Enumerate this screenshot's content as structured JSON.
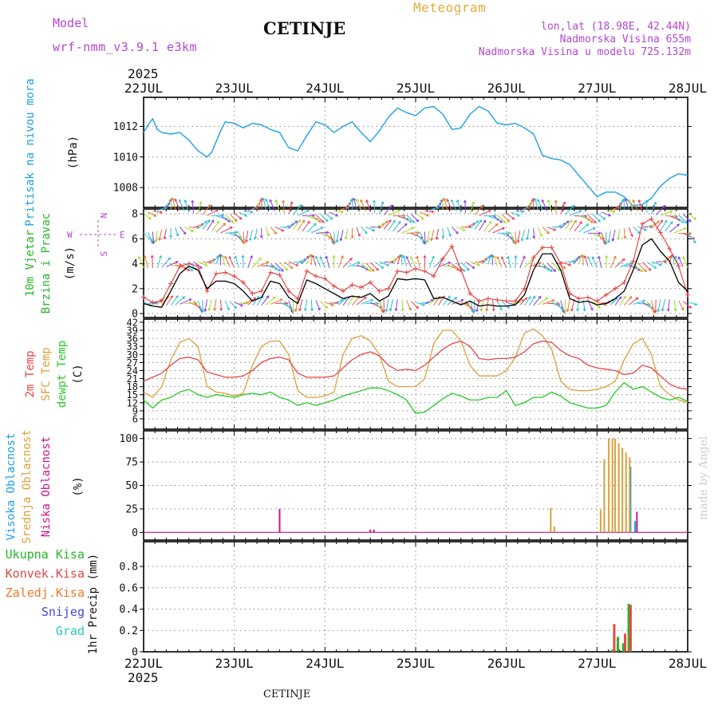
{
  "header": {
    "model_label": "Model",
    "model_name": "wrf-nmm_v3.9.1 e3km",
    "title": "CETINJE",
    "meteogram": "Meteogram",
    "lonlat": "lon,lat (18.98E, 42.44N)",
    "elevation": "Nadmorska Visina 655m",
    "model_elevation": "Nadmorska Visina u modelu 725.132m",
    "footer_title": "CETINJE",
    "watermark": "made by Angel"
  },
  "colors": {
    "pressure": "#1ea0e6",
    "temp2m": "#e64646",
    "sfc": "#dca03c",
    "dewpt": "#28c828",
    "wind_speed": "#000000",
    "gust": "#e64646",
    "high_cloud": "#1ea0e6",
    "mid_cloud": "#dca03c",
    "low_cloud": "#c8148c",
    "total_precip": "#28b428",
    "conv_precip": "#e64646",
    "frozen": "#f07828",
    "snow": "#4646dc",
    "graupel": "#28c8b4",
    "purple_text": "#b446d2",
    "orange_text": "#e6aa3c"
  },
  "chart_data": [
    {
      "type": "line",
      "panel": "pressure",
      "year": "2025",
      "x_ticks": [
        "22JUL",
        "23JUL",
        "24JUL",
        "25JUL",
        "26JUL",
        "27JUL",
        "28JUL"
      ],
      "xlim_days": [
        0,
        6
      ],
      "ylabel_side": "Pritisak na nivou mora",
      "ylabel_unit": "(hPa)",
      "y_ticks": [
        "1008",
        "1010",
        "1012"
      ],
      "ylim": [
        1006.7,
        1013.9
      ],
      "series": [
        {
          "name": "Pritisak na nivou mora",
          "x": [
            0,
            0.05,
            0.1,
            0.15,
            0.2,
            0.3,
            0.4,
            0.5,
            0.6,
            0.7,
            0.75,
            0.85,
            0.9,
            1.0,
            1.1,
            1.2,
            1.3,
            1.4,
            1.5,
            1.6,
            1.7,
            1.8,
            1.9,
            2.0,
            2.1,
            2.2,
            2.3,
            2.4,
            2.5,
            2.6,
            2.7,
            2.8,
            2.9,
            3.0,
            3.1,
            3.2,
            3.3,
            3.4,
            3.5,
            3.6,
            3.7,
            3.8,
            3.9,
            4.0,
            4.1,
            4.2,
            4.3,
            4.4,
            4.5,
            4.6,
            4.7,
            4.8,
            4.9,
            5.0,
            5.1,
            5.2,
            5.3,
            5.4,
            5.5,
            5.6,
            5.7,
            5.8,
            5.9,
            6.0
          ],
          "values": [
            1011.6,
            1012.1,
            1012.5,
            1011.8,
            1011.6,
            1011.5,
            1011.6,
            1011.1,
            1010.4,
            1010.0,
            1010.3,
            1011.7,
            1012.3,
            1012.2,
            1011.9,
            1012.2,
            1012.1,
            1011.8,
            1011.6,
            1010.6,
            1010.4,
            1011.4,
            1012.3,
            1012.1,
            1011.6,
            1012.0,
            1012.3,
            1011.6,
            1011.0,
            1011.7,
            1012.6,
            1013.2,
            1012.9,
            1012.7,
            1013.2,
            1013.3,
            1012.8,
            1011.8,
            1011.9,
            1012.8,
            1013.3,
            1013.0,
            1012.2,
            1012.1,
            1012.2,
            1011.9,
            1011.5,
            1010.1,
            1009.9,
            1009.8,
            1009.5,
            1008.8,
            1008.1,
            1007.4,
            1007.7,
            1007.7,
            1007.4,
            1006.8,
            1006.9,
            1007.3,
            1008.1,
            1008.6,
            1008.9,
            1008.8
          ]
        }
      ]
    },
    {
      "type": "line",
      "panel": "wind",
      "ylabel_side": [
        "10m Vjetar",
        "Brzina i Pravac"
      ],
      "ylabel_unit": "(m/s)",
      "y_ticks": [
        "0",
        "2",
        "4",
        "6",
        "8"
      ],
      "ylim": [
        0,
        8.2
      ],
      "compass": {
        "n": "N",
        "s": "S",
        "w": "W",
        "e": "E"
      },
      "arrow_rows": [
        0.9,
        3.9,
        6.7,
        8.1
      ],
      "series": [
        {
          "name": "wind speed",
          "x": [
            0,
            0.1,
            0.2,
            0.3,
            0.4,
            0.5,
            0.6,
            0.7,
            0.8,
            0.9,
            1.0,
            1.1,
            1.2,
            1.3,
            1.4,
            1.5,
            1.6,
            1.7,
            1.8,
            1.9,
            2.0,
            2.1,
            2.2,
            2.3,
            2.4,
            2.5,
            2.6,
            2.7,
            2.8,
            2.9,
            3.0,
            3.1,
            3.2,
            3.3,
            3.4,
            3.5,
            3.6,
            3.7,
            3.8,
            3.9,
            4.0,
            4.1,
            4.2,
            4.3,
            4.4,
            4.5,
            4.6,
            4.7,
            4.8,
            4.9,
            5.0,
            5.1,
            5.2,
            5.3,
            5.4,
            5.5,
            5.6,
            5.7,
            5.8,
            5.9,
            6.0
          ],
          "values": [
            0.8,
            0.6,
            0.5,
            1.8,
            3.2,
            3.8,
            3.5,
            2.0,
            2.6,
            2.6,
            2.4,
            1.8,
            1.0,
            1.3,
            2.6,
            2.4,
            1.3,
            0.8,
            2.7,
            2.4,
            2.0,
            1.6,
            1.2,
            1.4,
            1.3,
            1.6,
            1.0,
            1.4,
            2.8,
            2.7,
            2.8,
            2.7,
            1.2,
            1.3,
            1.0,
            0.7,
            1.0,
            0.6,
            0.7,
            0.6,
            0.6,
            0.7,
            1.5,
            3.5,
            4.8,
            4.8,
            3.5,
            1.2,
            0.9,
            1.0,
            0.7,
            0.8,
            1.2,
            1.8,
            3.5,
            5.5,
            6.0,
            5.0,
            4.2,
            2.5,
            1.8
          ]
        },
        {
          "name": "gust",
          "x": [
            0,
            0.1,
            0.2,
            0.3,
            0.4,
            0.5,
            0.6,
            0.7,
            0.8,
            0.9,
            1.0,
            1.1,
            1.2,
            1.3,
            1.4,
            1.5,
            1.6,
            1.7,
            1.8,
            1.9,
            2.0,
            2.1,
            2.2,
            2.3,
            2.4,
            2.5,
            2.6,
            2.7,
            2.8,
            2.9,
            3.0,
            3.1,
            3.2,
            3.3,
            3.4,
            3.5,
            3.6,
            3.7,
            3.8,
            3.9,
            4.0,
            4.1,
            4.2,
            4.3,
            4.4,
            4.5,
            4.6,
            4.7,
            4.8,
            4.9,
            5.0,
            5.1,
            5.2,
            5.3,
            5.4,
            5.5,
            5.6,
            5.7,
            5.8,
            5.9,
            6.0
          ],
          "values": [
            1.3,
            0.9,
            1.0,
            2.4,
            3.8,
            4.0,
            3.8,
            1.8,
            3.2,
            3.3,
            3.0,
            2.5,
            1.6,
            1.8,
            3.3,
            3.1,
            1.8,
            1.2,
            3.4,
            3.0,
            2.8,
            2.2,
            1.8,
            2.3,
            2.1,
            2.5,
            1.8,
            2.0,
            3.4,
            3.3,
            3.6,
            3.4,
            3.0,
            4.4,
            5.4,
            3.5,
            1.6,
            1.0,
            1.2,
            1.1,
            1.0,
            1.0,
            2.0,
            4.5,
            5.3,
            5.3,
            4.0,
            1.6,
            1.2,
            1.3,
            1.0,
            1.5,
            2.0,
            2.5,
            4.2,
            7.2,
            7.6,
            6.5,
            5.2,
            3.8,
            1.5
          ]
        }
      ]
    },
    {
      "type": "line",
      "panel": "temperature",
      "ylabel_side": [
        "2m Temp",
        "SFC Temp",
        "dewpt Temp"
      ],
      "ylabel_unit": "(C)",
      "y_ticks": [
        "6",
        "9",
        "12",
        "15",
        "18",
        "21",
        "24",
        "27",
        "30",
        "33",
        "36",
        "39",
        "42"
      ],
      "ylim": [
        4.5,
        42
      ],
      "series": [
        {
          "name": "2m Temp",
          "x": [
            0,
            0.1,
            0.2,
            0.3,
            0.4,
            0.5,
            0.6,
            0.7,
            0.8,
            0.9,
            1.0,
            1.1,
            1.2,
            1.3,
            1.4,
            1.5,
            1.6,
            1.7,
            1.8,
            1.9,
            2.0,
            2.1,
            2.2,
            2.3,
            2.4,
            2.5,
            2.6,
            2.7,
            2.8,
            2.9,
            3.0,
            3.1,
            3.2,
            3.3,
            3.4,
            3.5,
            3.6,
            3.7,
            3.8,
            3.9,
            4.0,
            4.1,
            4.2,
            4.3,
            4.4,
            4.5,
            4.6,
            4.7,
            4.8,
            4.9,
            5.0,
            5.1,
            5.2,
            5.3,
            5.4,
            5.5,
            5.6,
            5.7,
            5.8,
            5.9,
            6.0
          ],
          "values": [
            20,
            21.5,
            23,
            26,
            28.5,
            29,
            28,
            23.5,
            22.5,
            21.5,
            21.5,
            22,
            24,
            27,
            28.5,
            29,
            28,
            23,
            21.5,
            21.5,
            21.5,
            22,
            25,
            28,
            30,
            31,
            29.5,
            26,
            24,
            24.5,
            24,
            26,
            29,
            32,
            34,
            35,
            33,
            28.5,
            28,
            28.5,
            28.5,
            29,
            31,
            34,
            35,
            34.5,
            31.5,
            29.5,
            28.5,
            26,
            25,
            24.5,
            24,
            22.5,
            23,
            26,
            25,
            22,
            19,
            17.5,
            17
          ]
        },
        {
          "name": "SFC Temp",
          "x": [
            0,
            0.1,
            0.2,
            0.3,
            0.4,
            0.5,
            0.6,
            0.7,
            0.8,
            0.9,
            1.0,
            1.1,
            1.2,
            1.3,
            1.4,
            1.5,
            1.6,
            1.7,
            1.8,
            1.9,
            2.0,
            2.1,
            2.2,
            2.3,
            2.4,
            2.5,
            2.6,
            2.7,
            2.8,
            2.9,
            3.0,
            3.1,
            3.2,
            3.3,
            3.4,
            3.5,
            3.6,
            3.7,
            3.8,
            3.9,
            4.0,
            4.1,
            4.2,
            4.3,
            4.4,
            4.5,
            4.6,
            4.7,
            4.8,
            4.9,
            5.0,
            5.1,
            5.2,
            5.3,
            5.4,
            5.5,
            5.6,
            5.7,
            5.8,
            5.9,
            6.0
          ],
          "values": [
            16,
            14,
            18,
            28,
            34.5,
            36,
            33,
            18,
            16,
            15.5,
            14.5,
            15.5,
            26,
            33,
            35,
            35,
            30,
            16.5,
            14,
            14,
            14.5,
            16,
            30,
            36,
            37,
            35,
            30,
            20,
            18,
            18,
            18,
            21,
            34,
            39,
            39,
            35,
            26,
            22,
            22,
            22,
            24,
            29,
            38,
            39.5,
            37,
            32,
            20,
            17,
            16.5,
            16.5,
            17,
            18,
            20,
            28,
            34,
            36,
            30,
            18,
            15,
            13,
            12
          ]
        },
        {
          "name": "dewpt Temp",
          "x": [
            0,
            0.1,
            0.2,
            0.3,
            0.4,
            0.5,
            0.6,
            0.7,
            0.8,
            0.9,
            1.0,
            1.1,
            1.2,
            1.3,
            1.4,
            1.5,
            1.6,
            1.7,
            1.8,
            1.9,
            2.0,
            2.1,
            2.2,
            2.3,
            2.4,
            2.5,
            2.6,
            2.7,
            2.8,
            2.9,
            3.0,
            3.1,
            3.2,
            3.3,
            3.4,
            3.5,
            3.6,
            3.7,
            3.8,
            3.9,
            4.0,
            4.1,
            4.2,
            4.3,
            4.4,
            4.5,
            4.6,
            4.7,
            4.8,
            4.9,
            5.0,
            5.1,
            5.2,
            5.3,
            5.4,
            5.5,
            5.6,
            5.7,
            5.8,
            5.9,
            6.0
          ],
          "values": [
            13,
            10,
            13,
            14,
            16,
            17,
            15,
            14,
            15,
            14.5,
            14,
            15,
            15.5,
            15,
            16,
            14,
            13,
            11,
            12,
            11,
            12,
            13,
            14.5,
            15.5,
            16.5,
            17.5,
            17.5,
            16.5,
            15,
            13,
            8,
            8.5,
            11,
            13.5,
            15.5,
            14.5,
            13,
            13,
            14,
            14,
            16.5,
            11,
            12,
            14,
            14,
            16,
            14.5,
            12,
            11,
            10,
            10,
            11,
            16,
            19.5,
            17,
            18,
            16,
            14,
            13,
            14,
            12.5
          ]
        }
      ]
    },
    {
      "type": "bar",
      "panel": "cloud",
      "ylabel_side": [
        "Visoka Oblacnost",
        "Srednja Oblacnost",
        "Niska Oblacnost"
      ],
      "ylabel_unit": "(%)",
      "y_ticks": [
        "0",
        "25",
        "50",
        "75",
        "100"
      ],
      "ylim": [
        -4,
        104
      ],
      "series": [
        {
          "name": "Visoka Oblacnost",
          "x": [
            5.37,
            5.42
          ],
          "values": [
            70,
            12
          ]
        },
        {
          "name": "Srednja Oblacnost",
          "x": [
            4.49,
            4.53,
            5.04,
            5.08,
            5.13,
            5.17,
            5.2,
            5.24,
            5.28,
            5.32,
            5.36
          ],
          "values": [
            26,
            6,
            24,
            78,
            100,
            100,
            100,
            95,
            90,
            85,
            80
          ]
        },
        {
          "name": "Niska Oblacnost",
          "x": [
            1.5,
            2.5,
            2.54,
            5.44
          ],
          "values": [
            25,
            3,
            3,
            22
          ]
        }
      ]
    },
    {
      "type": "bar",
      "panel": "precip",
      "ylabel_side": [
        "Ukupna Kisa",
        "Konvek.Kisa",
        "Zaledj.Kisa",
        "Snijeg",
        "Grad"
      ],
      "ylabel_unit": "1hr Precip (mm)",
      "y_ticks": [
        "0",
        "0.2",
        "0.4",
        "0.6",
        "0.8"
      ],
      "ylim": [
        0,
        0.95
      ],
      "series": [
        {
          "name": "Ukupna Kisa",
          "x": [
            5.17,
            5.23,
            5.29,
            5.35
          ],
          "values": [
            0.02,
            0.14,
            0.08,
            0.45
          ]
        },
        {
          "name": "Konvek.Kisa",
          "x": [
            5.19,
            5.31,
            5.37
          ],
          "values": [
            0.26,
            0.17,
            0.44
          ]
        }
      ]
    }
  ]
}
